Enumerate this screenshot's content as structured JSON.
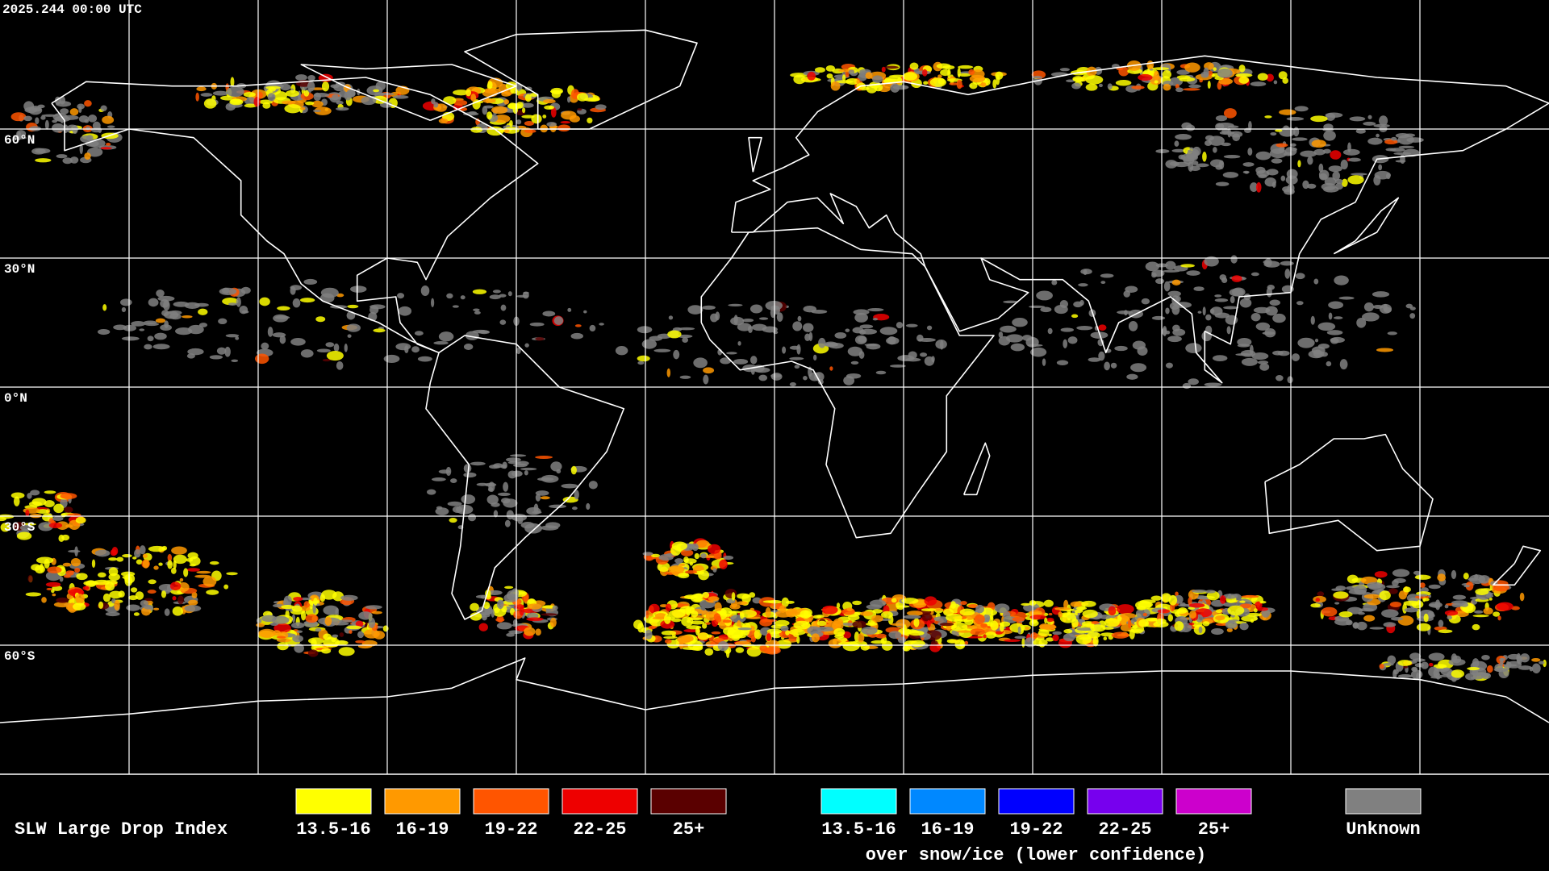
{
  "header": {
    "timestamp": "2025.244 00:00 UTC"
  },
  "map": {
    "latitude_labels": [
      "60°N",
      "30°N",
      "0°N",
      "30°S",
      "60°S"
    ]
  },
  "legend": {
    "title": "SLW Large Drop Index",
    "groups": [
      {
        "items": [
          {
            "label": "13.5-16",
            "color": "#ffff00"
          },
          {
            "label": "16-19",
            "color": "#ff9900"
          },
          {
            "label": "19-22",
            "color": "#ff5500"
          },
          {
            "label": "22-25",
            "color": "#ee0000"
          },
          {
            "label": "25+",
            "color": "#5a0000"
          }
        ]
      },
      {
        "items": [
          {
            "label": "13.5-16",
            "color": "#00ffff"
          },
          {
            "label": "16-19",
            "color": "#0088ff"
          },
          {
            "label": "19-22",
            "color": "#0000ff"
          },
          {
            "label": "22-25",
            "color": "#7700ee"
          },
          {
            "label": "25+",
            "color": "#cc00cc"
          }
        ],
        "caption": "over snow/ice (lower confidence)"
      },
      {
        "items": [
          {
            "label": "Unknown",
            "color": "#808080"
          }
        ]
      }
    ]
  }
}
